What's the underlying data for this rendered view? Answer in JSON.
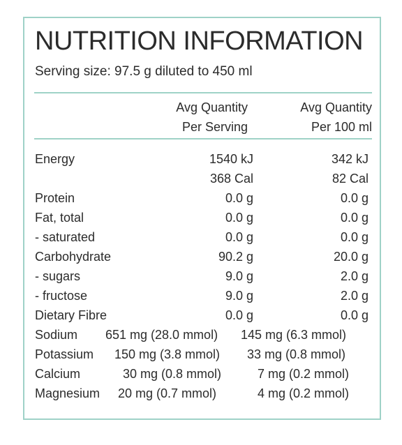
{
  "title": "NUTRITION INFORMATION",
  "serving_size": "Serving size: 97.5 g diluted to 450 ml",
  "columns": {
    "per_serving_line1": "Avg Quantity",
    "per_serving_line2": "Per Serving",
    "per_100_line1": "Avg Quantity",
    "per_100_line2": "Per 100 ml"
  },
  "rows": [
    {
      "label": "Energy",
      "serving": "1540 kJ",
      "per100": "342 kJ"
    },
    {
      "label": "",
      "serving": "368 Cal",
      "per100": "82 Cal"
    },
    {
      "label": "Protein",
      "serving": "0.0 g",
      "per100": "0.0 g"
    },
    {
      "label": "Fat, total",
      "serving": "0.0 g",
      "per100": "0.0 g"
    },
    {
      "label": "- saturated",
      "serving": "0.0 g",
      "per100": "0.0 g"
    },
    {
      "label": "Carbohydrate",
      "serving": "90.2 g",
      "per100": "20.0 g"
    },
    {
      "label": "- sugars",
      "serving": "9.0 g",
      "per100": "2.0 g"
    },
    {
      "label": "- fructose",
      "serving": "9.0 g",
      "per100": "2.0 g"
    },
    {
      "label": "Dietary Fibre",
      "serving": "0.0 g",
      "per100": "0.0 g"
    }
  ],
  "minerals": [
    {
      "label": "Sodium",
      "serving": "651 mg (28.0 mmol)",
      "per100": "145 mg (6.3 mmol)"
    },
    {
      "label": "Potassium",
      "serving": "150 mg (3.8 mmol)",
      "per100": "33 mg (0.8 mmol)"
    },
    {
      "label": "Calcium",
      "serving": "30 mg (0.8 mmol)",
      "per100": "7 mg (0.2 mmol)"
    },
    {
      "label": "Magnesium",
      "serving": "20 mg (0.7 mmol)",
      "per100": "4 mg (0.2 mmol)"
    }
  ],
  "colors": {
    "border": "#9fd2c7",
    "text": "#2b2b2b"
  }
}
